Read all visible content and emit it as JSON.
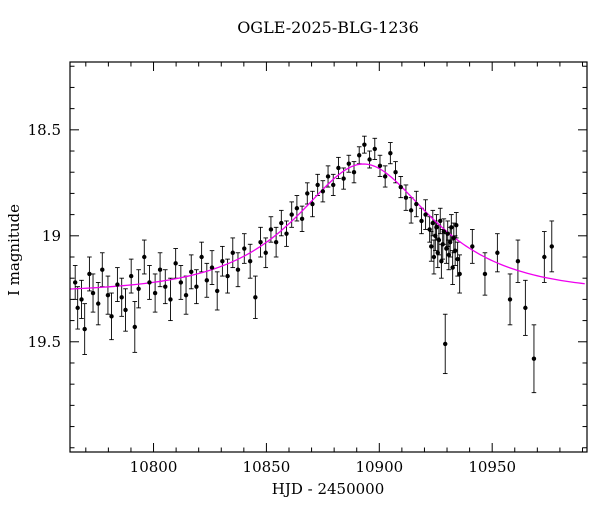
{
  "chart_data": {
    "type": "scatter",
    "title": "OGLE-2025-BLG-1236",
    "xlabel": "HJD - 2450000",
    "ylabel": "I magnitude",
    "xlim": [
      10763,
      10992
    ],
    "ylim": {
      "top": 18.18,
      "bottom": 20.02
    },
    "y_axis_inverted": true,
    "x_major_ticks": [
      10800,
      10850,
      10900,
      10950
    ],
    "x_minor_step": 10,
    "y_major_ticks": [
      18.5,
      19,
      19.5
    ],
    "y_tick_labels": [
      "18.5",
      "19",
      "19.5"
    ],
    "y_minor_step": 0.1,
    "grid": false,
    "legend": "none",
    "colors": {
      "points": "#000000",
      "model": "#ee00ee",
      "frame": "#000000"
    },
    "model": {
      "type": "paczynski",
      "t0": 10893,
      "tE": 45,
      "u0": 0.66,
      "baseline_mag": 19.27,
      "peak_mag": 18.66
    },
    "points": [
      [
        10765.3,
        19.22,
        0.08
      ],
      [
        10766.4,
        19.34,
        0.1
      ],
      [
        10768.1,
        19.3,
        0.09
      ],
      [
        10769.5,
        19.44,
        0.12
      ],
      [
        10771.6,
        19.18,
        0.08
      ],
      [
        10773.2,
        19.27,
        0.09
      ],
      [
        10775.5,
        19.32,
        0.1
      ],
      [
        10777.3,
        19.16,
        0.08
      ],
      [
        10779.8,
        19.28,
        0.09
      ],
      [
        10781.4,
        19.38,
        0.11
      ],
      [
        10784.0,
        19.23,
        0.08
      ],
      [
        10785.9,
        19.29,
        0.09
      ],
      [
        10787.6,
        19.35,
        0.1
      ],
      [
        10790.1,
        19.19,
        0.08
      ],
      [
        10791.7,
        19.43,
        0.12
      ],
      [
        10793.4,
        19.25,
        0.09
      ],
      [
        10795.9,
        19.1,
        0.08
      ],
      [
        10798.2,
        19.22,
        0.08
      ],
      [
        10800.7,
        19.27,
        0.09
      ],
      [
        10802.9,
        19.16,
        0.08
      ],
      [
        10805.2,
        19.24,
        0.08
      ],
      [
        10807.5,
        19.3,
        0.1
      ],
      [
        10809.8,
        19.13,
        0.07
      ],
      [
        10812.1,
        19.22,
        0.08
      ],
      [
        10814.4,
        19.28,
        0.09
      ],
      [
        10816.7,
        19.17,
        0.08
      ],
      [
        10819.0,
        19.24,
        0.08
      ],
      [
        10821.3,
        19.1,
        0.07
      ],
      [
        10823.6,
        19.21,
        0.08
      ],
      [
        10825.9,
        19.15,
        0.08
      ],
      [
        10828.2,
        19.26,
        0.09
      ],
      [
        10830.5,
        19.12,
        0.07
      ],
      [
        10832.8,
        19.19,
        0.08
      ],
      [
        10835.1,
        19.08,
        0.07
      ],
      [
        10837.4,
        19.16,
        0.08
      ],
      [
        10840.2,
        19.06,
        0.07
      ],
      [
        10842.8,
        19.12,
        0.08
      ],
      [
        10845.1,
        19.29,
        0.1
      ],
      [
        10847.4,
        19.03,
        0.07
      ],
      [
        10849.7,
        19.08,
        0.07
      ],
      [
        10852.0,
        18.97,
        0.06
      ],
      [
        10854.3,
        19.03,
        0.07
      ],
      [
        10856.6,
        18.94,
        0.06
      ],
      [
        10858.9,
        18.99,
        0.06
      ],
      [
        10861.2,
        18.9,
        0.06
      ],
      [
        10863.5,
        18.87,
        0.06
      ],
      [
        10865.8,
        18.92,
        0.06
      ],
      [
        10868.1,
        18.8,
        0.05
      ],
      [
        10870.4,
        18.85,
        0.06
      ],
      [
        10872.7,
        18.76,
        0.05
      ],
      [
        10875.0,
        18.79,
        0.05
      ],
      [
        10877.3,
        18.72,
        0.05
      ],
      [
        10879.6,
        18.76,
        0.05
      ],
      [
        10881.9,
        18.68,
        0.05
      ],
      [
        10884.2,
        18.73,
        0.05
      ],
      [
        10886.5,
        18.66,
        0.04
      ],
      [
        10888.8,
        18.7,
        0.05
      ],
      [
        10891.1,
        18.62,
        0.04
      ],
      [
        10893.4,
        18.57,
        0.04
      ],
      [
        10895.7,
        18.64,
        0.04
      ],
      [
        10898.0,
        18.59,
        0.05
      ],
      [
        10900.3,
        18.67,
        0.05
      ],
      [
        10902.6,
        18.72,
        0.05
      ],
      [
        10904.9,
        18.61,
        0.05
      ],
      [
        10907.2,
        18.7,
        0.05
      ],
      [
        10909.5,
        18.77,
        0.05
      ],
      [
        10911.8,
        18.82,
        0.06
      ],
      [
        10914.1,
        18.88,
        0.06
      ],
      [
        10916.4,
        18.85,
        0.06
      ],
      [
        10918.7,
        18.93,
        0.06
      ],
      [
        10920.5,
        18.9,
        0.07
      ],
      [
        10922.3,
        18.97,
        0.06
      ],
      [
        10923.0,
        19.05,
        0.07
      ],
      [
        10923.7,
        18.94,
        0.06
      ],
      [
        10924.2,
        19.1,
        0.08
      ],
      [
        10924.8,
        19.0,
        0.07
      ],
      [
        10925.3,
        18.96,
        0.06
      ],
      [
        10925.9,
        19.08,
        0.07
      ],
      [
        10926.4,
        19.02,
        0.07
      ],
      [
        10927.0,
        18.93,
        0.06
      ],
      [
        10927.5,
        19.12,
        0.08
      ],
      [
        10928.1,
        19.04,
        0.07
      ],
      [
        10928.6,
        18.98,
        0.06
      ],
      [
        10929.2,
        19.51,
        0.14
      ],
      [
        10929.7,
        19.06,
        0.07
      ],
      [
        10930.3,
        18.99,
        0.06
      ],
      [
        10930.8,
        19.09,
        0.07
      ],
      [
        10931.4,
        19.03,
        0.07
      ],
      [
        10931.9,
        18.96,
        0.06
      ],
      [
        10932.5,
        19.15,
        0.08
      ],
      [
        10933.0,
        19.01,
        0.07
      ],
      [
        10933.6,
        19.07,
        0.07
      ],
      [
        10934.1,
        18.95,
        0.06
      ],
      [
        10934.7,
        19.11,
        0.08
      ],
      [
        10935.6,
        19.18,
        0.09
      ],
      [
        10941.2,
        19.05,
        0.08
      ],
      [
        10946.8,
        19.18,
        0.1
      ],
      [
        10952.3,
        19.08,
        0.09
      ],
      [
        10957.9,
        19.3,
        0.12
      ],
      [
        10961.4,
        19.12,
        0.1
      ],
      [
        10964.7,
        19.34,
        0.13
      ],
      [
        10968.5,
        19.58,
        0.16
      ],
      [
        10973.1,
        19.1,
        0.12
      ],
      [
        10976.4,
        19.05,
        0.12
      ]
    ]
  }
}
